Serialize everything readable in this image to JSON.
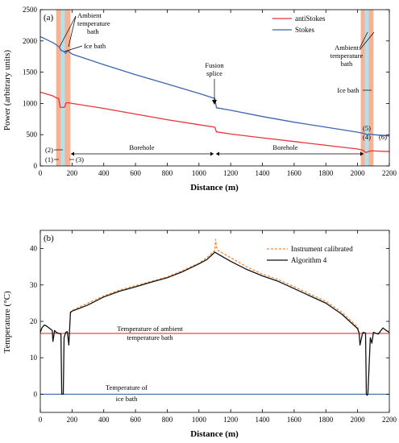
{
  "chart_data": [
    {
      "type": "line",
      "panel": "(a)",
      "xlabel": "Distance (m)",
      "ylabel": "Power (arbitrary units)",
      "xlim": [
        0,
        2200
      ],
      "ylim": [
        0,
        2500
      ],
      "xticks": [
        0,
        200,
        400,
        600,
        800,
        1000,
        1200,
        1400,
        1600,
        1800,
        2000,
        2200
      ],
      "yticks": [
        0,
        500,
        1000,
        1500,
        2000,
        2500
      ],
      "legend_position": "top-right",
      "series": [
        {
          "name": "antiStokes",
          "color": "#e8343c",
          "x": [
            0,
            40,
            80,
            100,
            115,
            120,
            125,
            150,
            155,
            160,
            165,
            180,
            200,
            400,
            600,
            800,
            1000,
            1100,
            1110,
            1200,
            1400,
            1600,
            1800,
            2000,
            2030,
            2040,
            2050,
            2060,
            2080,
            2100,
            2200
          ],
          "y": [
            1180,
            1150,
            1120,
            1090,
            1080,
            1020,
            940,
            935,
            950,
            1000,
            1010,
            1010,
            1000,
            920,
            830,
            740,
            660,
            620,
            545,
            510,
            450,
            390,
            330,
            270,
            255,
            240,
            215,
            220,
            240,
            240,
            230
          ]
        },
        {
          "name": "Stokes",
          "color": "#3e64b0",
          "x": [
            0,
            40,
            80,
            100,
            120,
            130,
            150,
            160,
            170,
            180,
            200,
            400,
            600,
            800,
            1000,
            1100,
            1110,
            1200,
            1400,
            1600,
            1800,
            2000,
            2040,
            2060,
            2080,
            2100,
            2200
          ],
          "y": [
            2070,
            2020,
            1970,
            1940,
            1900,
            1850,
            1830,
            1800,
            1840,
            1830,
            1790,
            1620,
            1460,
            1310,
            1160,
            1080,
            930,
            890,
            790,
            700,
            620,
            540,
            520,
            500,
            510,
            500,
            480
          ]
        }
      ],
      "bands": [
        {
          "from": 100,
          "to": 130,
          "kind": "ambient",
          "color": "#f4a582"
        },
        {
          "from": 130,
          "to": 155,
          "kind": "ice",
          "color": "#a6dbe8"
        },
        {
          "from": 155,
          "to": 190,
          "kind": "ambient",
          "color": "#f4a582"
        },
        {
          "from": 2020,
          "to": 2045,
          "kind": "ambient",
          "color": "#f4a582"
        },
        {
          "from": 2045,
          "to": 2070,
          "kind": "ice",
          "color": "#a6dbe8"
        },
        {
          "from": 2070,
          "to": 2100,
          "kind": "ambient",
          "color": "#f4a582"
        }
      ],
      "annotations": {
        "panel_label": "(a)",
        "ambient_bath_left": [
          "Ambient",
          "temperature",
          "bath"
        ],
        "ice_bath_left": "Ice bath",
        "fusion_splice": [
          "Fusion",
          "splice"
        ],
        "ambient_bath_right": [
          "Ambient",
          "temperature",
          "bath"
        ],
        "ice_bath_right": "Ice bath",
        "borehole_left": "Borehole",
        "borehole_right": "Borehole",
        "markers": {
          "m1": "(1)",
          "m2": "(2)",
          "m3": "(3)",
          "m4": "(4)",
          "m5": "(5)",
          "m6": "(6)"
        }
      }
    },
    {
      "type": "line",
      "panel": "(b)",
      "xlabel": "Distance (m)",
      "ylabel": "Temperature (°C)",
      "xlim": [
        0,
        2200
      ],
      "ylim": [
        -5,
        45
      ],
      "xticks": [
        0,
        200,
        400,
        600,
        800,
        1000,
        1200,
        1400,
        1600,
        1800,
        2000,
        2200
      ],
      "yticks": [
        0,
        10,
        20,
        30,
        40
      ],
      "legend_position": "top-right",
      "series": [
        {
          "name": "Instrument calibrated",
          "color": "#f08a3c",
          "dashed": true,
          "x": [
            190,
            200,
            300,
            400,
            500,
            600,
            700,
            800,
            900,
            1000,
            1050,
            1100,
            1105,
            1110,
            1120,
            1200,
            1300,
            1400,
            1500,
            1600,
            1700,
            1800,
            1900,
            2000,
            2010
          ],
          "y": [
            22.2,
            23.0,
            25.0,
            27.0,
            28.6,
            29.8,
            31.0,
            32.2,
            34.0,
            36.0,
            37.5,
            39.5,
            42.5,
            40.5,
            39.5,
            37.5,
            35.0,
            33.0,
            31.5,
            29.5,
            27.5,
            25.5,
            22.5,
            18.5,
            16.7
          ]
        },
        {
          "name": "Algorithm 4",
          "color": "#111111",
          "x": [
            0,
            10,
            25,
            40,
            55,
            75,
            80,
            90,
            100,
            110,
            130,
            135,
            145,
            150,
            160,
            170,
            175,
            180,
            190,
            200,
            300,
            400,
            500,
            600,
            700,
            800,
            900,
            1000,
            1050,
            1100,
            1120,
            1200,
            1300,
            1400,
            1500,
            1600,
            1700,
            1800,
            1900,
            2000,
            2010,
            2015,
            2030,
            2035,
            2050,
            2055,
            2060,
            2065,
            2080,
            2090,
            2100,
            2130,
            2160,
            2180,
            2200
          ],
          "y": [
            17.0,
            18.2,
            19.0,
            18.7,
            18.2,
            17.5,
            14.5,
            17.5,
            17.0,
            16.8,
            16.5,
            0.0,
            0.0,
            15.5,
            17.0,
            17.2,
            15.5,
            13.5,
            22.5,
            22.8,
            24.5,
            26.7,
            28.3,
            29.5,
            30.8,
            32.0,
            33.7,
            35.8,
            37.0,
            39.0,
            38.5,
            36.5,
            34.3,
            32.5,
            31.0,
            29.0,
            27.0,
            25.0,
            22.0,
            18.0,
            16.7,
            13.5,
            16.5,
            17.0,
            16.8,
            0.0,
            -0.3,
            0.0,
            15.5,
            14.0,
            17.0,
            16.5,
            18.2,
            17.5,
            17.0
          ]
        }
      ],
      "reference_lines": [
        {
          "y": 16.7,
          "color": "#e8343c",
          "label": [
            "Temperature of ambient",
            "temperature bath"
          ]
        },
        {
          "y": 0.0,
          "color": "#3e64b0",
          "label": [
            "Temperature of",
            "ice bath"
          ]
        }
      ],
      "annotations": {
        "panel_label": "(b)"
      }
    }
  ]
}
